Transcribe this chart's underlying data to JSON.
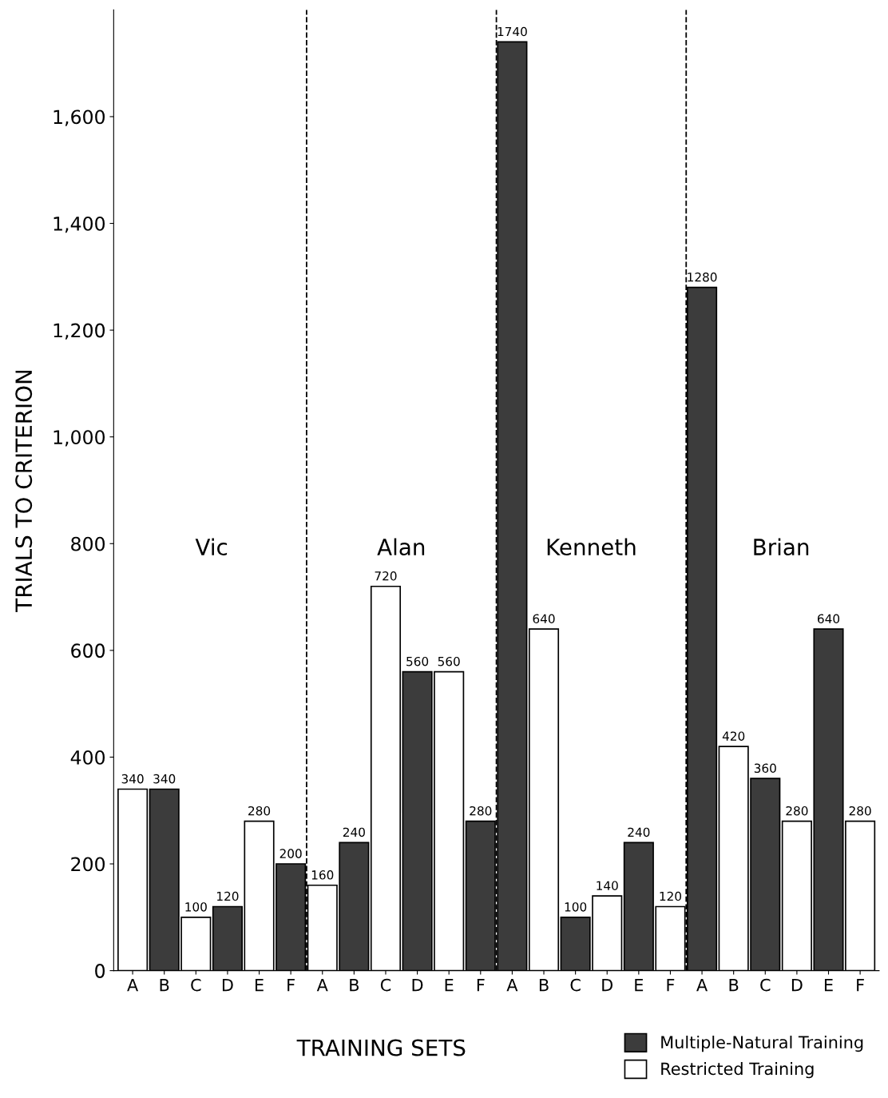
{
  "chart_data": {
    "type": "bar",
    "categories": [
      "A",
      "B",
      "C",
      "D",
      "E",
      "F",
      "A",
      "B",
      "C",
      "D",
      "E",
      "F",
      "A",
      "B",
      "C",
      "D",
      "E",
      "F",
      "A",
      "B",
      "C",
      "D",
      "E",
      "F"
    ],
    "series": [
      {
        "name": "Multiple-Natural Training",
        "color": "#3c3c3c",
        "values": [
          null,
          340,
          null,
          120,
          null,
          200,
          null,
          240,
          null,
          560,
          null,
          280,
          1740,
          null,
          100,
          null,
          240,
          null,
          1280,
          null,
          360,
          null,
          640,
          null
        ]
      },
      {
        "name": "Restricted Training",
        "color": "#ffffff",
        "values": [
          340,
          null,
          100,
          null,
          280,
          null,
          160,
          null,
          720,
          null,
          560,
          null,
          null,
          640,
          null,
          140,
          null,
          120,
          null,
          420,
          null,
          280,
          null,
          280
        ]
      }
    ],
    "xlabel": "TRAINING SETS",
    "ylabel": "TRIALS TO CRITERION",
    "ylim": [
      0,
      1800
    ],
    "yticks": [
      0,
      200,
      400,
      600,
      800,
      {
        "value": 1000,
        "label": "1,000"
      },
      {
        "value": 1200,
        "label": "1,200"
      },
      {
        "value": 1400,
        "label": "1,400"
      },
      {
        "value": 1600,
        "label": "1,600"
      }
    ],
    "annotations": [
      "Vic",
      "Alan",
      "Kenneth",
      "Brian"
    ],
    "data_labels": true,
    "grid": false,
    "legend": "bottom right"
  }
}
